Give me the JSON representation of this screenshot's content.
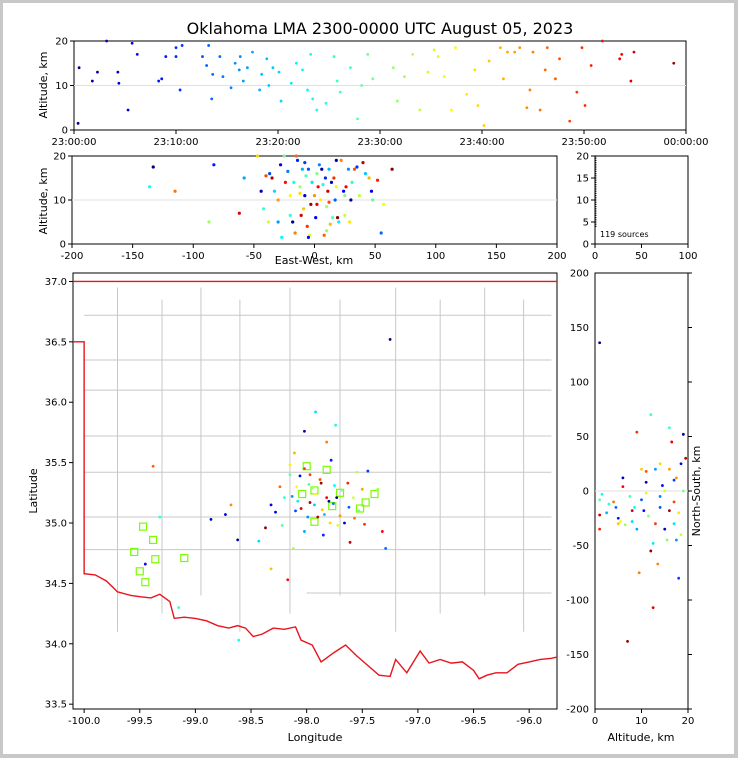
{
  "title": "Oklahoma LMA 2300-0000 UTC August 05, 2023",
  "panels": {
    "time_height": {
      "ylabel": "Altitude, km",
      "xticks": [
        "23:00:00",
        "23:10:00",
        "23:20:00",
        "23:30:00",
        "23:40:00",
        "23:50:00",
        "00:00:00"
      ],
      "yticks": [
        "0",
        "10",
        "20"
      ]
    },
    "ew_height": {
      "xlabel": "East-West, km",
      "ylabel": "Altitude, km",
      "xticks": [
        "-200",
        "-150",
        "-100",
        "-50",
        "0",
        "50",
        "100",
        "150",
        "200"
      ],
      "yticks": [
        "0",
        "10",
        "20"
      ]
    },
    "histogram": {
      "xticks": [
        "0",
        "50",
        "100"
      ],
      "yticks": [
        "0",
        "5",
        "10",
        "15",
        "20"
      ],
      "source_count_label": "119 sources"
    },
    "map": {
      "xlabel": "Longitude",
      "ylabel": "Latitude",
      "xticks": [
        "-100.0",
        "-99.5",
        "-99.0",
        "-98.5",
        "-98.0",
        "-97.5",
        "-97.0",
        "-96.5",
        "-96.0"
      ],
      "yticks": [
        "33.5",
        "34.0",
        "34.5",
        "35.0",
        "35.5",
        "36.0",
        "36.5",
        "37.0"
      ]
    },
    "ns_height": {
      "xlabel": "Altitude, km",
      "ylabel": "North-South, km",
      "xticks": [
        "0",
        "10",
        "20"
      ],
      "yticks": [
        "-200",
        "-150",
        "-100",
        "-50",
        "0",
        "50",
        "100",
        "150",
        "200"
      ]
    }
  },
  "colors": {
    "state_border": "#e8141e",
    "county_lines": "#c8c8c8",
    "stations": "#7cfc00",
    "background": "#ffffff",
    "window_border": "#c8c8c8"
  },
  "chart_data": [
    {
      "type": "scatter",
      "panel": "time-height",
      "x_unit": "minutes after 23:00:00 UTC",
      "ylabel": "Altitude, km",
      "xlim": [
        0,
        60
      ],
      "ylim": [
        0,
        20
      ],
      "points": [
        [
          0.5,
          14
        ],
        [
          0.4,
          1.5
        ],
        [
          1.8,
          11
        ],
        [
          2.3,
          13
        ],
        [
          3.2,
          20
        ],
        [
          4.3,
          13
        ],
        [
          4.4,
          10.5
        ],
        [
          5.3,
          4.5
        ],
        [
          5.7,
          19.5
        ],
        [
          6.2,
          17
        ],
        [
          8.3,
          11
        ],
        [
          8.6,
          11.5
        ],
        [
          9,
          16.5
        ],
        [
          10,
          18.5
        ],
        [
          10,
          16.5
        ],
        [
          10.4,
          9
        ],
        [
          10.6,
          19
        ],
        [
          12.6,
          16.5
        ],
        [
          13,
          14.5
        ],
        [
          13.2,
          19
        ],
        [
          13.6,
          12.5
        ],
        [
          13.5,
          7
        ],
        [
          14.3,
          16.5
        ],
        [
          14.6,
          12
        ],
        [
          15.4,
          9.5
        ],
        [
          15.8,
          15
        ],
        [
          16.3,
          16.5
        ],
        [
          16.2,
          13.5
        ],
        [
          16.6,
          11
        ],
        [
          17,
          14
        ],
        [
          17.5,
          17.5
        ],
        [
          18.2,
          9
        ],
        [
          18.4,
          12.5
        ],
        [
          18.9,
          16
        ],
        [
          19.1,
          10
        ],
        [
          19.5,
          14
        ],
        [
          20.1,
          13
        ],
        [
          20.3,
          6.5
        ],
        [
          21.3,
          10.5
        ],
        [
          21.8,
          15
        ],
        [
          22.4,
          13.5
        ],
        [
          22.9,
          9
        ],
        [
          23.2,
          17
        ],
        [
          23.4,
          7
        ],
        [
          23.8,
          4.5
        ],
        [
          24.7,
          6
        ],
        [
          25.5,
          16.5
        ],
        [
          25.8,
          11
        ],
        [
          26.1,
          8.5
        ],
        [
          27.1,
          14
        ],
        [
          27.8,
          2.5
        ],
        [
          28.2,
          10
        ],
        [
          28.8,
          17
        ],
        [
          29.3,
          11.5
        ],
        [
          31.3,
          14
        ],
        [
          31.7,
          6.5
        ],
        [
          32.4,
          12
        ],
        [
          33.2,
          17
        ],
        [
          33.9,
          4.5
        ],
        [
          34.7,
          13
        ],
        [
          35.3,
          18
        ],
        [
          35.7,
          16.5
        ],
        [
          36.3,
          12
        ],
        [
          37,
          4.5
        ],
        [
          37.4,
          18.5
        ],
        [
          38.5,
          8
        ],
        [
          39.3,
          13.5
        ],
        [
          39.6,
          5.5
        ],
        [
          40.2,
          1
        ],
        [
          40.7,
          15.5
        ],
        [
          41.8,
          18.5
        ],
        [
          42.1,
          11.5
        ],
        [
          42.5,
          17.5
        ],
        [
          43.2,
          17.5
        ],
        [
          43.7,
          18.5
        ],
        [
          44.4,
          5
        ],
        [
          44.7,
          9
        ],
        [
          45,
          17.5
        ],
        [
          45.7,
          4.5
        ],
        [
          46.2,
          13.5
        ],
        [
          46.4,
          18.5
        ],
        [
          47.2,
          11.5
        ],
        [
          47.6,
          16
        ],
        [
          48.6,
          2
        ],
        [
          49.3,
          8.5
        ],
        [
          49.8,
          18.5
        ],
        [
          50.1,
          5.5
        ],
        [
          50.7,
          14.5
        ],
        [
          51.8,
          20
        ],
        [
          53.5,
          16
        ],
        [
          53.7,
          17
        ],
        [
          54.6,
          11
        ],
        [
          54.9,
          17.5
        ],
        [
          58.8,
          15
        ]
      ]
    },
    {
      "type": "scatter",
      "panel": "east-west vs altitude",
      "xlabel": "East-West, km",
      "ylabel": "Altitude, km",
      "xlim": [
        -200,
        200
      ],
      "ylim": [
        0,
        20
      ],
      "points": [
        [
          -133,
          17.5
        ],
        [
          -136,
          13
        ],
        [
          -115,
          12
        ],
        [
          -83,
          18
        ],
        [
          -87,
          5
        ],
        [
          -62,
          7
        ],
        [
          -58,
          15
        ],
        [
          -47,
          20
        ],
        [
          -44,
          12
        ],
        [
          -42,
          8
        ],
        [
          -40,
          15.5
        ],
        [
          -37,
          16
        ],
        [
          -38,
          5
        ],
        [
          -35,
          15
        ],
        [
          -33,
          12
        ],
        [
          -30,
          10
        ],
        [
          -28,
          18
        ],
        [
          -25,
          20
        ],
        [
          -24,
          14
        ],
        [
          -22,
          16.5
        ],
        [
          -20,
          11
        ],
        [
          -18,
          5
        ],
        [
          -17,
          14
        ],
        [
          -15,
          20
        ],
        [
          -14,
          19
        ],
        [
          -12,
          13
        ],
        [
          -11,
          6.5
        ],
        [
          -10,
          17
        ],
        [
          -9,
          8
        ],
        [
          -8,
          11
        ],
        [
          -7,
          15.5
        ],
        [
          -6,
          4
        ],
        [
          -5,
          17
        ],
        [
          -4,
          2
        ],
        [
          -3,
          9
        ],
        [
          -2,
          14
        ],
        [
          0,
          11
        ],
        [
          1,
          6
        ],
        [
          2,
          16
        ],
        [
          3,
          13
        ],
        [
          4,
          18
        ],
        [
          5,
          10
        ],
        [
          6,
          17
        ],
        [
          7,
          13.5
        ],
        [
          8,
          2
        ],
        [
          9,
          15
        ],
        [
          10,
          8.5
        ],
        [
          11,
          12
        ],
        [
          12,
          17
        ],
        [
          13,
          4.5
        ],
        [
          14,
          14
        ],
        [
          15,
          6
        ],
        [
          16,
          15
        ],
        [
          17,
          10
        ],
        [
          18,
          13
        ],
        [
          19,
          6
        ],
        [
          20,
          5
        ],
        [
          22,
          19
        ],
        [
          24,
          12
        ],
        [
          25,
          11
        ],
        [
          26,
          13
        ],
        [
          28,
          17
        ],
        [
          29,
          5
        ],
        [
          30,
          10
        ],
        [
          31,
          14
        ],
        [
          33,
          17
        ],
        [
          35,
          17.5
        ],
        [
          37,
          11
        ],
        [
          40,
          18.5
        ],
        [
          42,
          16
        ],
        [
          45,
          15
        ],
        [
          47,
          12
        ],
        [
          48,
          10
        ],
        [
          52,
          14.5
        ],
        [
          55,
          2.5
        ],
        [
          57,
          9
        ],
        [
          64,
          17
        ],
        [
          -27,
          1.5
        ],
        [
          -16,
          2.5
        ],
        [
          -5,
          1.5
        ],
        [
          10,
          3
        ],
        [
          2,
          9
        ],
        [
          -30,
          5
        ],
        [
          -12,
          11.5
        ],
        [
          18,
          19
        ],
        [
          -20,
          6.5
        ],
        [
          12,
          9.5
        ],
        [
          -8,
          18.5
        ],
        [
          25,
          6.5
        ]
      ]
    },
    {
      "type": "bar",
      "panel": "source count per altitude",
      "xlim": [
        0,
        100
      ],
      "ylim": [
        0,
        20
      ],
      "total_label": "119 sources"
    },
    {
      "type": "scatter",
      "panel": "plan view",
      "xlabel": "Longitude",
      "ylabel": "Latitude",
      "xlim": [
        -100.1,
        -95.75
      ],
      "ylim": [
        33.46,
        37.07
      ],
      "stations": [
        [
          -99.55,
          34.76
        ],
        [
          -99.47,
          34.97
        ],
        [
          -99.38,
          34.86
        ],
        [
          -99.5,
          34.6
        ],
        [
          -99.45,
          34.51
        ],
        [
          -99.36,
          34.7
        ],
        [
          -99.1,
          34.71
        ],
        [
          -98.04,
          35.24
        ],
        [
          -98.0,
          35.47
        ],
        [
          -97.93,
          35.27
        ],
        [
          -97.93,
          35.01
        ],
        [
          -97.82,
          35.44
        ],
        [
          -97.77,
          35.14
        ],
        [
          -97.7,
          35.25
        ],
        [
          -97.52,
          35.12
        ],
        [
          -97.47,
          35.17
        ],
        [
          -97.39,
          35.24
        ]
      ],
      "sources": [
        [
          -97.25,
          36.52
        ],
        [
          -97.92,
          35.92
        ],
        [
          -98.11,
          35.58
        ],
        [
          -98.02,
          35.76
        ],
        [
          -97.74,
          35.81
        ],
        [
          -97.82,
          35.67
        ],
        [
          -98.06,
          35.39
        ],
        [
          -97.98,
          35.32
        ],
        [
          -97.88,
          35.36
        ],
        [
          -97.78,
          35.52
        ],
        [
          -97.68,
          35.27
        ],
        [
          -97.63,
          35.33
        ],
        [
          -98.1,
          35.1
        ],
        [
          -98.12,
          34.79
        ],
        [
          -97.82,
          35.21
        ],
        [
          -97.76,
          35.16
        ],
        [
          -97.72,
          34.98
        ],
        [
          -97.9,
          35.05
        ],
        [
          -98.02,
          34.93
        ],
        [
          -98.15,
          35.48
        ],
        [
          -98.37,
          34.96
        ],
        [
          -98.43,
          34.85
        ],
        [
          -98.32,
          34.62
        ],
        [
          -98.62,
          34.86
        ],
        [
          -98.61,
          34.03
        ],
        [
          -98.68,
          35.15
        ],
        [
          -98.73,
          35.07
        ],
        [
          -99.15,
          34.3
        ],
        [
          -99.38,
          35.47
        ],
        [
          -99.45,
          34.66
        ],
        [
          -97.53,
          35.1
        ],
        [
          -97.48,
          34.99
        ],
        [
          -97.45,
          35.43
        ],
        [
          -97.36,
          35.28
        ],
        [
          -97.32,
          34.93
        ],
        [
          -97.29,
          34.79
        ],
        [
          -97.58,
          35.21
        ],
        [
          -97.61,
          34.84
        ],
        [
          -98.13,
          35.22
        ],
        [
          -98.09,
          35.3
        ],
        [
          -97.97,
          35.17
        ],
        [
          -97.93,
          35.15
        ],
        [
          -97.86,
          35.11
        ],
        [
          -97.8,
          35.18
        ],
        [
          -97.75,
          35.31
        ],
        [
          -97.7,
          35.06
        ],
        [
          -97.66,
          35.0
        ],
        [
          -98.2,
          35.21
        ],
        [
          -98.24,
          35.3
        ],
        [
          -98.32,
          35.15
        ],
        [
          -98.15,
          35.4
        ],
        [
          -98.02,
          35.45
        ],
        [
          -97.85,
          34.9
        ],
        [
          -97.95,
          35.29
        ],
        [
          -98.17,
          34.53
        ],
        [
          -97.62,
          35.13
        ],
        [
          -97.55,
          35.42
        ],
        [
          -98.05,
          35.12
        ],
        [
          -97.99,
          35.05
        ],
        [
          -97.92,
          35.24
        ],
        [
          -97.87,
          35.33
        ],
        [
          -97.84,
          35.07
        ],
        [
          -97.79,
          35.0
        ],
        [
          -97.73,
          35.21
        ],
        [
          -98.08,
          35.18
        ],
        [
          -97.5,
          35.28
        ],
        [
          -98.86,
          35.03
        ],
        [
          -99.32,
          35.05
        ],
        [
          -97.57,
          35.04
        ],
        [
          -98.28,
          35.09
        ],
        [
          -98.22,
          34.98
        ],
        [
          -97.97,
          35.4
        ]
      ]
    },
    {
      "type": "scatter",
      "panel": "altitude vs north-south",
      "xlabel": "Altitude, km",
      "ylabel": "North-South, km",
      "xlim": [
        0,
        20
      ],
      "ylim": [
        -200,
        200
      ],
      "points": [
        [
          1,
          136
        ],
        [
          1,
          -8
        ],
        [
          1,
          -22
        ],
        [
          1.5,
          -3
        ],
        [
          1,
          -35
        ],
        [
          2.5,
          -20
        ],
        [
          4,
          -10
        ],
        [
          4.5,
          -15
        ],
        [
          5,
          -30
        ],
        [
          5,
          -25
        ],
        [
          5.5,
          -28
        ],
        [
          6,
          12
        ],
        [
          6.5,
          -31
        ],
        [
          7,
          -138
        ],
        [
          7.5,
          -5
        ],
        [
          8,
          -18
        ],
        [
          8.5,
          -15
        ],
        [
          9,
          54
        ],
        [
          9,
          -35
        ],
        [
          9.5,
          -75
        ],
        [
          10,
          -8
        ],
        [
          10,
          20
        ],
        [
          10.5,
          -18
        ],
        [
          11,
          -2
        ],
        [
          11,
          8
        ],
        [
          11.5,
          -23
        ],
        [
          12,
          -55
        ],
        [
          12,
          70
        ],
        [
          12.5,
          -107
        ],
        [
          12.5,
          -48
        ],
        [
          13,
          -30
        ],
        [
          13,
          20
        ],
        [
          13.5,
          -67
        ],
        [
          14,
          -15
        ],
        [
          14,
          25
        ],
        [
          14.5,
          5
        ],
        [
          15,
          0
        ],
        [
          15,
          -35
        ],
        [
          15.5,
          -45
        ],
        [
          16,
          -18
        ],
        [
          16,
          58
        ],
        [
          16.5,
          45
        ],
        [
          17,
          -30
        ],
        [
          17,
          -10
        ],
        [
          17.5,
          -45
        ],
        [
          17.5,
          12
        ],
        [
          18,
          -80
        ],
        [
          18,
          -20
        ],
        [
          18.5,
          25
        ],
        [
          18.5,
          -40
        ],
        [
          19,
          52
        ],
        [
          19,
          0
        ],
        [
          19.5,
          30
        ],
        [
          3,
          -12
        ],
        [
          6,
          4
        ],
        [
          8,
          -28
        ],
        [
          11,
          18
        ],
        [
          14,
          -5
        ],
        [
          16,
          20
        ],
        [
          17,
          10
        ]
      ]
    }
  ]
}
